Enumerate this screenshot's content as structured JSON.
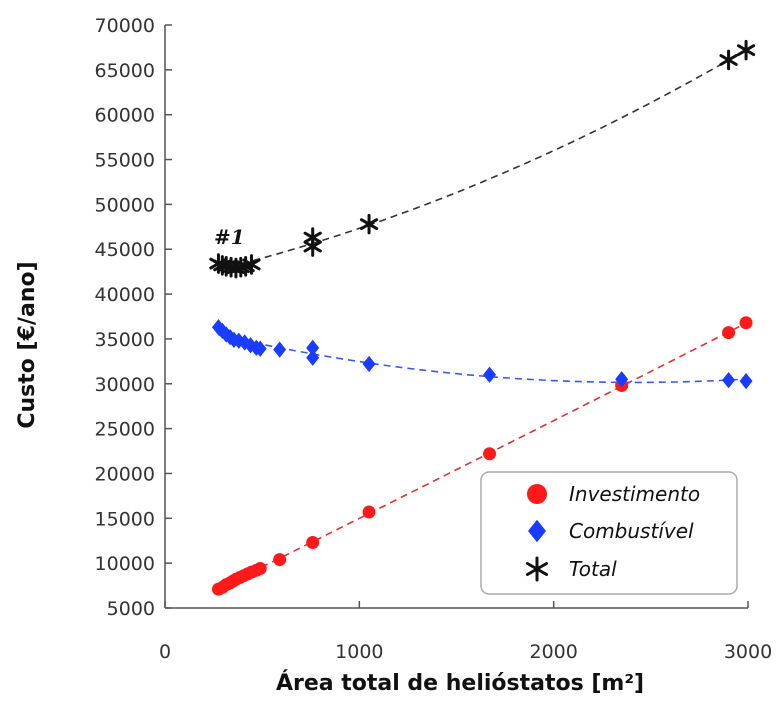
{
  "chart_data": {
    "type": "scatter",
    "title": "",
    "xlabel": "Área total de helióstatos [m²]",
    "ylabel": "Custo [€/ano]",
    "xlim": [
      0,
      3000
    ],
    "ylim": [
      5000,
      70000
    ],
    "x_ticks": [
      "0",
      "1000",
      "2000",
      "3000"
    ],
    "y_ticks": [
      "5000",
      "10000",
      "15000",
      "20000",
      "25000",
      "30000",
      "35000",
      "40000",
      "45000",
      "50000",
      "55000",
      "60000",
      "65000",
      "70000"
    ],
    "grid": false,
    "legend_position": "bottom-right",
    "annotation": "#1",
    "series": [
      {
        "name": "Investimento",
        "marker": "circle",
        "color": "#ff1a1a",
        "trend_color": "#e03030",
        "x": [
          275,
          295,
          315,
          335,
          350,
          365,
          385,
          405,
          425,
          445,
          470,
          490,
          590,
          760,
          1050,
          1670,
          2350,
          2900,
          2990
        ],
        "y": [
          7100,
          7300,
          7600,
          7800,
          8000,
          8200,
          8400,
          8600,
          8800,
          9000,
          9200,
          9400,
          10400,
          12300,
          15700,
          22200,
          29800,
          35700,
          36800
        ]
      },
      {
        "name": "Combustível",
        "marker": "diamond",
        "color": "#1a3cff",
        "trend_color": "#3a5ae6",
        "x": [
          275,
          295,
          315,
          335,
          355,
          380,
          410,
          440,
          470,
          490,
          590,
          760,
          760,
          1050,
          1670,
          2350,
          2900,
          2990
        ],
        "y": [
          36300,
          35900,
          35500,
          35200,
          34900,
          34800,
          34600,
          34300,
          34000,
          33900,
          33800,
          34000,
          32900,
          32200,
          31000,
          30500,
          30400,
          30300
        ]
      },
      {
        "name": "Total",
        "marker": "asterisk",
        "color": "#111111",
        "trend_color": "#333333",
        "x": [
          275,
          295,
          315,
          340,
          365,
          390,
          415,
          445,
          760,
          760,
          1050,
          2900,
          2990
        ],
        "y": [
          43400,
          43200,
          43100,
          43000,
          42900,
          43000,
          43100,
          43300,
          46300,
          45300,
          47800,
          66100,
          67200
        ]
      }
    ]
  }
}
